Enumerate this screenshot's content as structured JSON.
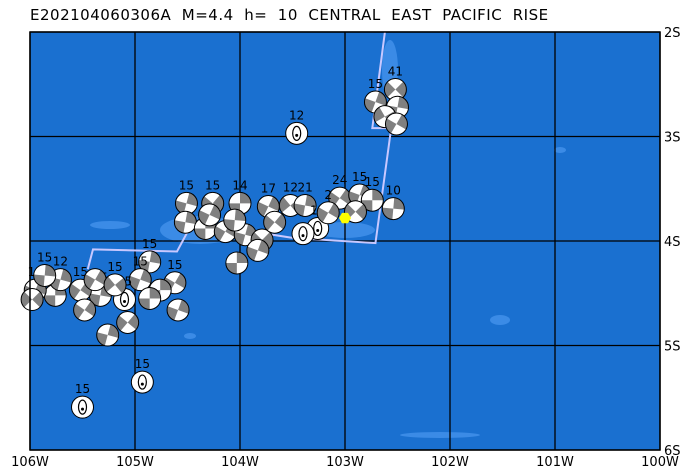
{
  "title": "E202104060306A  M=4.4  h=  10  CENTRAL  EAST  PACIFIC  RISE",
  "map": {
    "lon_range": [
      -106,
      -100
    ],
    "lat_range": [
      -6,
      -2
    ],
    "lon_ticks": [
      {
        "v": -106,
        "label": "106W"
      },
      {
        "v": -105,
        "label": "105W"
      },
      {
        "v": -104,
        "label": "104W"
      },
      {
        "v": -103,
        "label": "103W"
      },
      {
        "v": -102,
        "label": "102W"
      },
      {
        "v": -101,
        "label": "101W"
      },
      {
        "v": -100,
        "label": "100W"
      }
    ],
    "lat_ticks": [
      {
        "v": -2,
        "label": "2S"
      },
      {
        "v": -3,
        "label": "3S"
      },
      {
        "v": -4,
        "label": "4S"
      },
      {
        "v": -5,
        "label": "5S"
      },
      {
        "v": -6,
        "label": "6S"
      }
    ],
    "grid": true,
    "colors": {
      "ocean": "#1a70d0",
      "shallow": "#3b8be6",
      "grid": "#000000",
      "boundary": "#c8c8ff",
      "compressional": "#808080",
      "dilatational": "#ffffff",
      "epicenter": "#ffff00"
    },
    "epicenter": {
      "lon": -103.0,
      "lat": -3.78
    },
    "plate_boundary": [
      [
        -102.62,
        -2
      ],
      [
        -102.74,
        -2.92
      ],
      [
        -102.56,
        -2.92
      ],
      [
        -102.71,
        -4.02
      ],
      [
        -103.5,
        -3.97
      ],
      [
        -104.45,
        -3.82
      ],
      [
        -104.6,
        -4.1
      ],
      [
        -105.4,
        -4.08
      ],
      [
        -105.45,
        -4.27
      ]
    ],
    "events": [
      {
        "lon": -102.71,
        "lat": -2.67,
        "depth": "15",
        "rot": 20
      },
      {
        "lon": -102.52,
        "lat": -2.55,
        "depth": "41",
        "rot": 45
      },
      {
        "lon": -102.5,
        "lat": -2.72,
        "depth": "",
        "rot": 10
      },
      {
        "lon": -102.62,
        "lat": -2.81,
        "depth": "",
        "rot": 60
      },
      {
        "lon": -102.51,
        "lat": -2.88,
        "depth": "",
        "rot": 30
      },
      {
        "lon": -103.46,
        "lat": -2.97,
        "depth": "12",
        "rot": 0,
        "ellipse": true
      },
      {
        "lon": -102.54,
        "lat": -3.69,
        "depth": "10",
        "rot": 5
      },
      {
        "lon": -104.51,
        "lat": -3.64,
        "depth": "15",
        "rot": 15
      },
      {
        "lon": -104.26,
        "lat": -3.64,
        "depth": "15",
        "rot": 40
      },
      {
        "lon": -104.0,
        "lat": -3.64,
        "depth": "14",
        "rot": 0
      },
      {
        "lon": -103.73,
        "lat": -3.67,
        "depth": "17",
        "rot": 25
      },
      {
        "lon": -103.52,
        "lat": -3.66,
        "depth": "12",
        "rot": 50
      },
      {
        "lon": -103.38,
        "lat": -3.66,
        "depth": "21",
        "rot": 10
      },
      {
        "lon": -103.05,
        "lat": -3.59,
        "depth": "24",
        "rot": 35
      },
      {
        "lon": -102.86,
        "lat": -3.56,
        "depth": "15",
        "rot": 20
      },
      {
        "lon": -102.74,
        "lat": -3.61,
        "depth": "15",
        "rot": 0
      },
      {
        "lon": -102.9,
        "lat": -3.72,
        "depth": "",
        "rot": 45
      },
      {
        "lon": -103.26,
        "lat": -3.88,
        "depth": "13",
        "rot": 0,
        "ellipse": true
      },
      {
        "lon": -103.4,
        "lat": -3.93,
        "depth": "",
        "rot": 0,
        "ellipse": true
      },
      {
        "lon": -103.16,
        "lat": -3.73,
        "depth": "2",
        "rot": 30
      },
      {
        "lon": -104.52,
        "lat": -3.82,
        "depth": "",
        "rot": 10
      },
      {
        "lon": -104.33,
        "lat": -3.88,
        "depth": "",
        "rot": 0
      },
      {
        "lon": -104.14,
        "lat": -3.91,
        "depth": "",
        "rot": 30
      },
      {
        "lon": -103.95,
        "lat": -3.94,
        "depth": "",
        "rot": 15
      },
      {
        "lon": -103.79,
        "lat": -3.99,
        "depth": "",
        "rot": 45
      },
      {
        "lon": -103.83,
        "lat": -4.09,
        "depth": "",
        "rot": 20
      },
      {
        "lon": -104.03,
        "lat": -4.21,
        "depth": "",
        "rot": 0
      },
      {
        "lon": -104.29,
        "lat": -3.75,
        "depth": "",
        "rot": 25
      },
      {
        "lon": -104.05,
        "lat": -3.8,
        "depth": "",
        "rot": 5
      },
      {
        "lon": -103.67,
        "lat": -3.82,
        "depth": "",
        "rot": 40
      },
      {
        "lon": -104.86,
        "lat": -4.2,
        "depth": "15",
        "rot": 10
      },
      {
        "lon": -104.62,
        "lat": -4.4,
        "depth": "15",
        "rot": 30
      },
      {
        "lon": -104.76,
        "lat": -4.47,
        "depth": "",
        "rot": 0
      },
      {
        "lon": -104.95,
        "lat": -4.37,
        "depth": "15",
        "rot": 20
      },
      {
        "lon": -105.1,
        "lat": -4.56,
        "depth": "15",
        "rot": 0,
        "ellipse": true
      },
      {
        "lon": -105.26,
        "lat": -4.9,
        "depth": "",
        "rot": 15
      },
      {
        "lon": -105.07,
        "lat": -4.78,
        "depth": "",
        "rot": 40
      },
      {
        "lon": -105.33,
        "lat": -4.52,
        "depth": "15",
        "rot": 10
      },
      {
        "lon": -105.52,
        "lat": -4.47,
        "depth": "15",
        "rot": 35
      },
      {
        "lon": -105.76,
        "lat": -4.52,
        "depth": "15",
        "rot": 0
      },
      {
        "lon": -105.95,
        "lat": -4.47,
        "depth": "15",
        "rot": 25
      },
      {
        "lon": -105.98,
        "lat": -4.56,
        "depth": "",
        "rot": 45
      },
      {
        "lon": -105.71,
        "lat": -4.37,
        "depth": "12",
        "rot": 15
      },
      {
        "lon": -105.86,
        "lat": -4.33,
        "depth": "15",
        "rot": 5
      },
      {
        "lon": -105.38,
        "lat": -4.37,
        "depth": "",
        "rot": 30
      },
      {
        "lon": -105.19,
        "lat": -4.42,
        "depth": "15",
        "rot": 50
      },
      {
        "lon": -104.59,
        "lat": -4.66,
        "depth": "",
        "rot": 20
      },
      {
        "lon": -104.86,
        "lat": -4.55,
        "depth": "",
        "rot": 0
      },
      {
        "lon": -105.48,
        "lat": -4.66,
        "depth": "",
        "rot": 35
      },
      {
        "lon": -104.93,
        "lat": -5.35,
        "depth": "15",
        "rot": 0,
        "ellipse": true
      },
      {
        "lon": -105.5,
        "lat": -5.59,
        "depth": "15",
        "rot": 0,
        "ellipse": true
      }
    ]
  }
}
